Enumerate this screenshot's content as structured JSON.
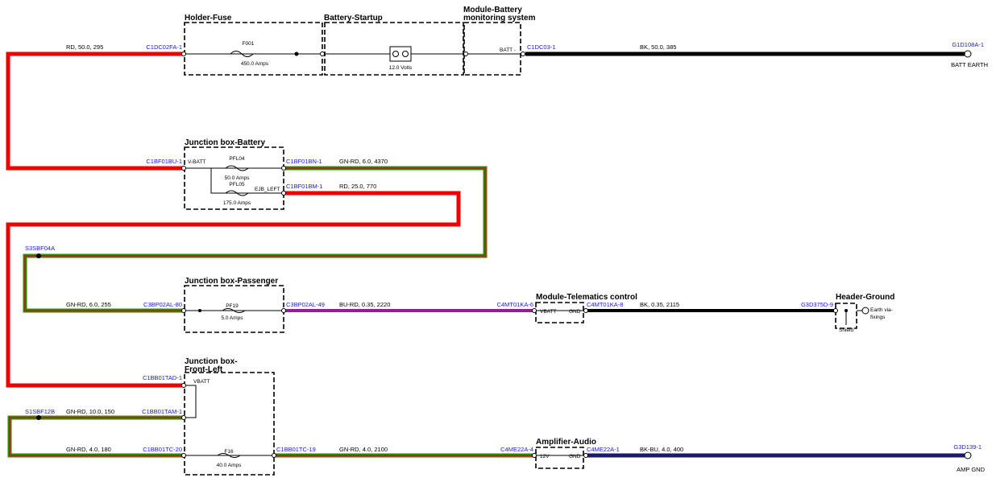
{
  "components": [
    {
      "title_lines": [
        "Holder-Fuse"
      ],
      "labels": [
        "F001",
        "450.0 Amps"
      ]
    },
    {
      "title_lines": [
        "Battery-Startup"
      ],
      "labels": [
        "12.0 Volts"
      ]
    },
    {
      "title_lines": [
        "Module-Battery",
        "monitoring system"
      ],
      "labels": [
        "BATT -"
      ]
    },
    {
      "title_lines": [
        "Junction box-Battery"
      ],
      "labels": [
        "V-BATT",
        "PFL04",
        "50.0 Amps",
        "PFL05",
        "175.0 Amps",
        "EJB_LEFT"
      ]
    },
    {
      "title_lines": [
        "Junction box-Passenger"
      ],
      "labels": [
        "PF19",
        "5.0 Amps"
      ]
    },
    {
      "title_lines": [
        "Module-Telematics control"
      ],
      "labels": [
        "VBATT",
        "GND"
      ]
    },
    {
      "title_lines": [
        "Header-Ground"
      ],
      "labels": [
        "Earth via-",
        "fixings",
        "Shield"
      ]
    },
    {
      "title_lines": [
        "Junction box-",
        "Front-Left"
      ],
      "labels": [
        "VBATT",
        "F16",
        "40.0 Amps"
      ]
    },
    {
      "title_lines": [
        "Amplifier-Audio"
      ],
      "labels": [
        "12V",
        "GND"
      ]
    }
  ],
  "connectors": [
    "C1DC02FA-1",
    "C1DC03-1",
    "G1D108A-1",
    "C1BF01BU-1",
    "C1BF01BN-1",
    "C1BF01BM-1",
    "S3SBF04A",
    "C3BP02AL-80",
    "C3BP02AL-49",
    "C4MT01KA-6",
    "C4MT01KA-8",
    "G3D375D-9",
    "C1BB01TAD-1",
    "S1SBF12B",
    "C1BB01TAM-1",
    "C1BB01TC-20",
    "C1BB01TC-19",
    "C4ME22A-4",
    "C4ME22A-1",
    "G3D139-1"
  ],
  "wires": [
    "RD, 50.0, 295",
    "BK, 50.0, 385",
    "GN-RD, 6.0, 4370",
    "RD, 25.0, 770",
    "GN-RD, 6.0, 255",
    "BU-RD, 0.35, 2220",
    "BK, 0.35, 2115",
    "GN-RD, 10.0, 150",
    "GN-RD, 4.0, 180",
    "GN-RD, 4.0, 2100",
    "BK-BU, 4.0, 400"
  ],
  "grounds": [
    "BATT EARTH",
    "AMP GND"
  ]
}
